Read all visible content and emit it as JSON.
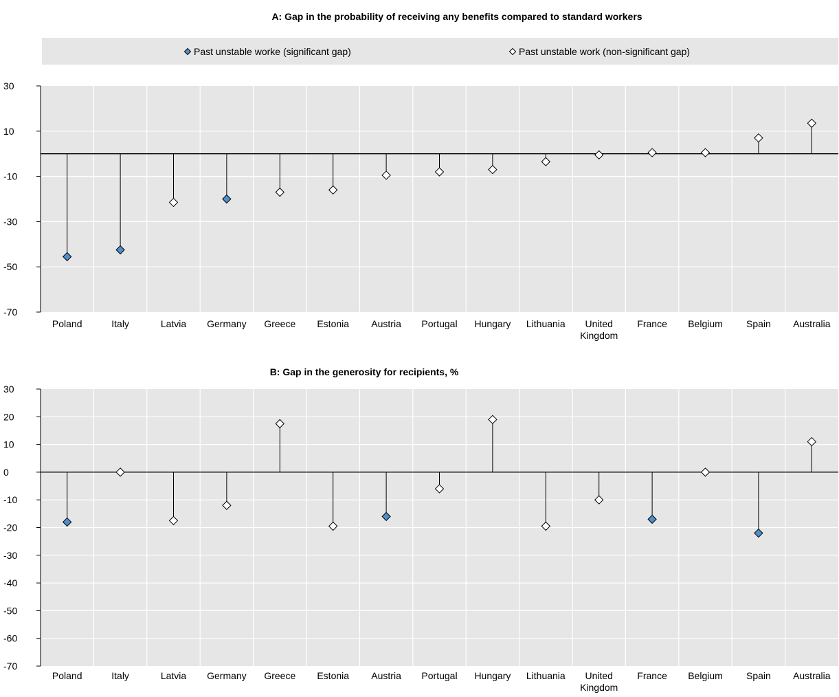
{
  "legend": {
    "significant_label": "Past unstable worke (significant gap)",
    "non_significant_label": "Past unstable work (non-significant gap)"
  },
  "colors": {
    "significant_fill": "#4f8fcf",
    "panel_bg": "#e6e6e6",
    "grid": "#ffffff",
    "axis": "#000000"
  },
  "chart_data": [
    {
      "type": "scatter",
      "subtype": "dot-with-stem",
      "title": "A: Gap in the probability of receiving any benefits compared to standard workers",
      "xlabel": "",
      "ylabel": "",
      "ylim": [
        -70,
        30
      ],
      "yticks": [
        30,
        10,
        -10,
        -30,
        -50,
        -70
      ],
      "grid": true,
      "legend_position": "top",
      "categories": [
        "Poland",
        "Italy",
        "Latvia",
        "Germany",
        "Greece",
        "Estonia",
        "Austria",
        "Portugal",
        "Hungary",
        "Lithuania",
        "United Kingdom",
        "France",
        "Belgium",
        "Spain",
        "Australia"
      ],
      "category_lines": [
        [
          "Poland"
        ],
        [
          "Italy"
        ],
        [
          "Latvia"
        ],
        [
          "Germany"
        ],
        [
          "Greece"
        ],
        [
          "Estonia"
        ],
        [
          "Austria"
        ],
        [
          "Portugal"
        ],
        [
          "Hungary"
        ],
        [
          "Lithuania"
        ],
        [
          "United",
          "Kingdom"
        ],
        [
          "France"
        ],
        [
          "Belgium"
        ],
        [
          "Spain"
        ],
        [
          "Australia"
        ]
      ],
      "values": [
        -45.5,
        -42.5,
        -21.5,
        -20,
        -17,
        -16,
        -9.5,
        -8,
        -7,
        -3.5,
        -0.5,
        0.5,
        0.5,
        7,
        13.5
      ],
      "significant": [
        true,
        true,
        false,
        true,
        false,
        false,
        false,
        false,
        false,
        false,
        false,
        false,
        false,
        false,
        false
      ]
    },
    {
      "type": "scatter",
      "subtype": "dot-with-stem",
      "title": "B: Gap in the generosity for recipients, %",
      "xlabel": "",
      "ylabel": "",
      "ylim": [
        -70,
        30
      ],
      "yticks": [
        30,
        20,
        10,
        0,
        -10,
        -20,
        -30,
        -40,
        -50,
        -60,
        -70
      ],
      "grid": true,
      "categories": [
        "Poland",
        "Italy",
        "Latvia",
        "Germany",
        "Greece",
        "Estonia",
        "Austria",
        "Portugal",
        "Hungary",
        "Lithuania",
        "United Kingdom",
        "France",
        "Belgium",
        "Spain",
        "Australia"
      ],
      "category_lines": [
        [
          "Poland"
        ],
        [
          "Italy"
        ],
        [
          "Latvia"
        ],
        [
          "Germany"
        ],
        [
          "Greece"
        ],
        [
          "Estonia"
        ],
        [
          "Austria"
        ],
        [
          "Portugal"
        ],
        [
          "Hungary"
        ],
        [
          "Lithuania"
        ],
        [
          "United",
          "Kingdom"
        ],
        [
          "France"
        ],
        [
          "Belgium"
        ],
        [
          "Spain"
        ],
        [
          "Australia"
        ]
      ],
      "values": [
        -18,
        0,
        -17.5,
        -12,
        17.5,
        -19.5,
        -16,
        -6,
        19,
        -19.5,
        -10,
        -17,
        0,
        -22,
        11
      ],
      "significant": [
        true,
        false,
        false,
        false,
        false,
        false,
        true,
        false,
        false,
        false,
        false,
        true,
        false,
        true,
        false
      ]
    }
  ]
}
